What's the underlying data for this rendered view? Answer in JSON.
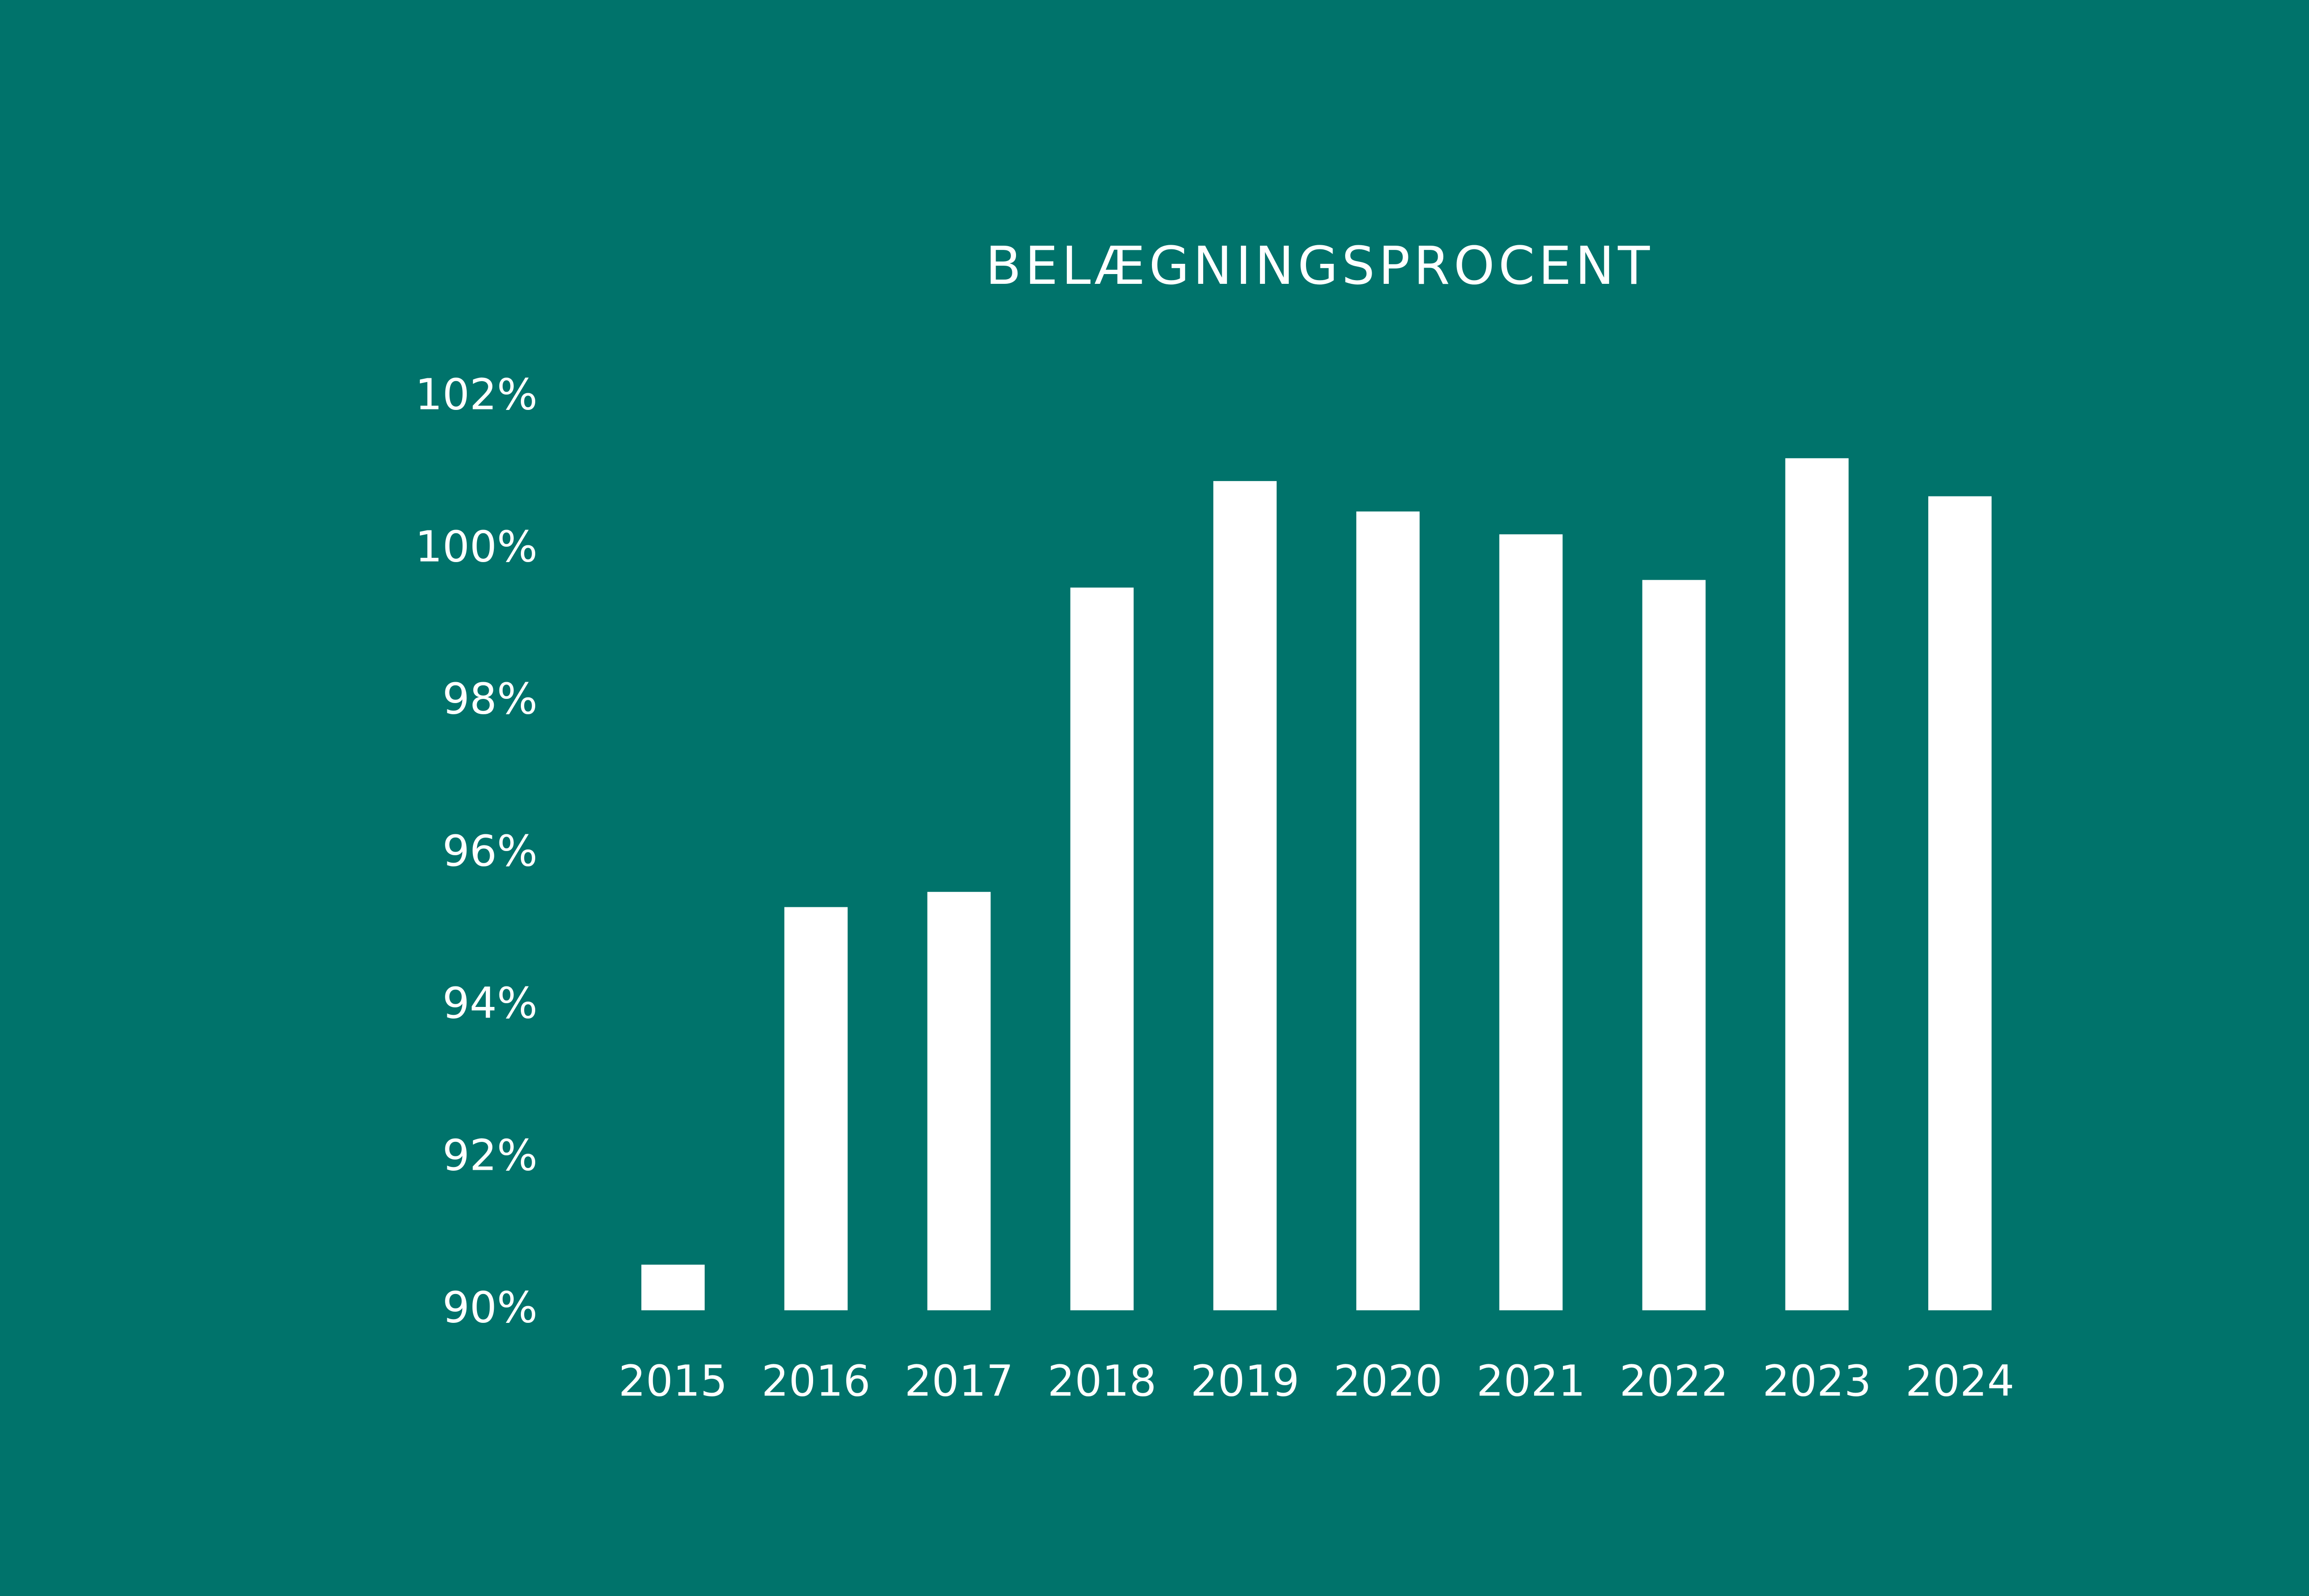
{
  "chart_data": {
    "type": "bar",
    "title": "BELÆGNINGSPROCENT",
    "categories": [
      "2015",
      "2016",
      "2017",
      "2018",
      "2019",
      "2020",
      "2021",
      "2022",
      "2023",
      "2024"
    ],
    "values": [
      90.6,
      95.3,
      95.5,
      99.5,
      100.9,
      100.5,
      100.2,
      99.6,
      101.2,
      100.7
    ],
    "color": "#ffffff",
    "ylim": [
      90,
      102
    ],
    "yticks": [
      {
        "value": 90,
        "label": "90%"
      },
      {
        "value": 92,
        "label": "92%"
      },
      {
        "value": 94,
        "label": "94%"
      },
      {
        "value": 96,
        "label": "96%"
      },
      {
        "value": 98,
        "label": "98%"
      },
      {
        "value": 100,
        "label": "100%"
      },
      {
        "value": 102,
        "label": "102%"
      }
    ],
    "grid": false
  }
}
